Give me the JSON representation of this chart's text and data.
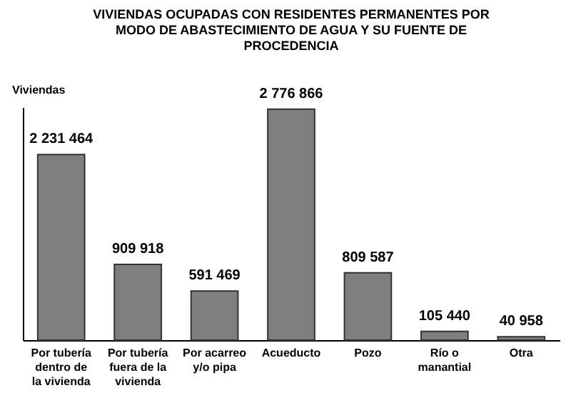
{
  "chart_data": {
    "type": "bar",
    "title": "VIVIENDAS OCUPADAS  CON RESIDENTES PERMANENTES POR MODO DE ABASTECIMIENTO DE AGUA Y SU FUENTE DE PROCEDENCIA",
    "ylabel": "Viviendas",
    "categories": [
      "Por tubería dentro de la vivienda",
      "Por tubería fuera de la vivienda",
      "Por acarreo y/o pipa",
      "Acueducto",
      "Pozo",
      "Río o manantial",
      "Otra"
    ],
    "values": [
      2231464,
      909918,
      591469,
      2776866,
      809587,
      105440,
      40958
    ],
    "value_labels": [
      "2 231 464",
      "909 918",
      "591 469",
      "2 776 866",
      "809 587",
      "105 440",
      "40 958"
    ],
    "color": "#7f7f7f"
  }
}
